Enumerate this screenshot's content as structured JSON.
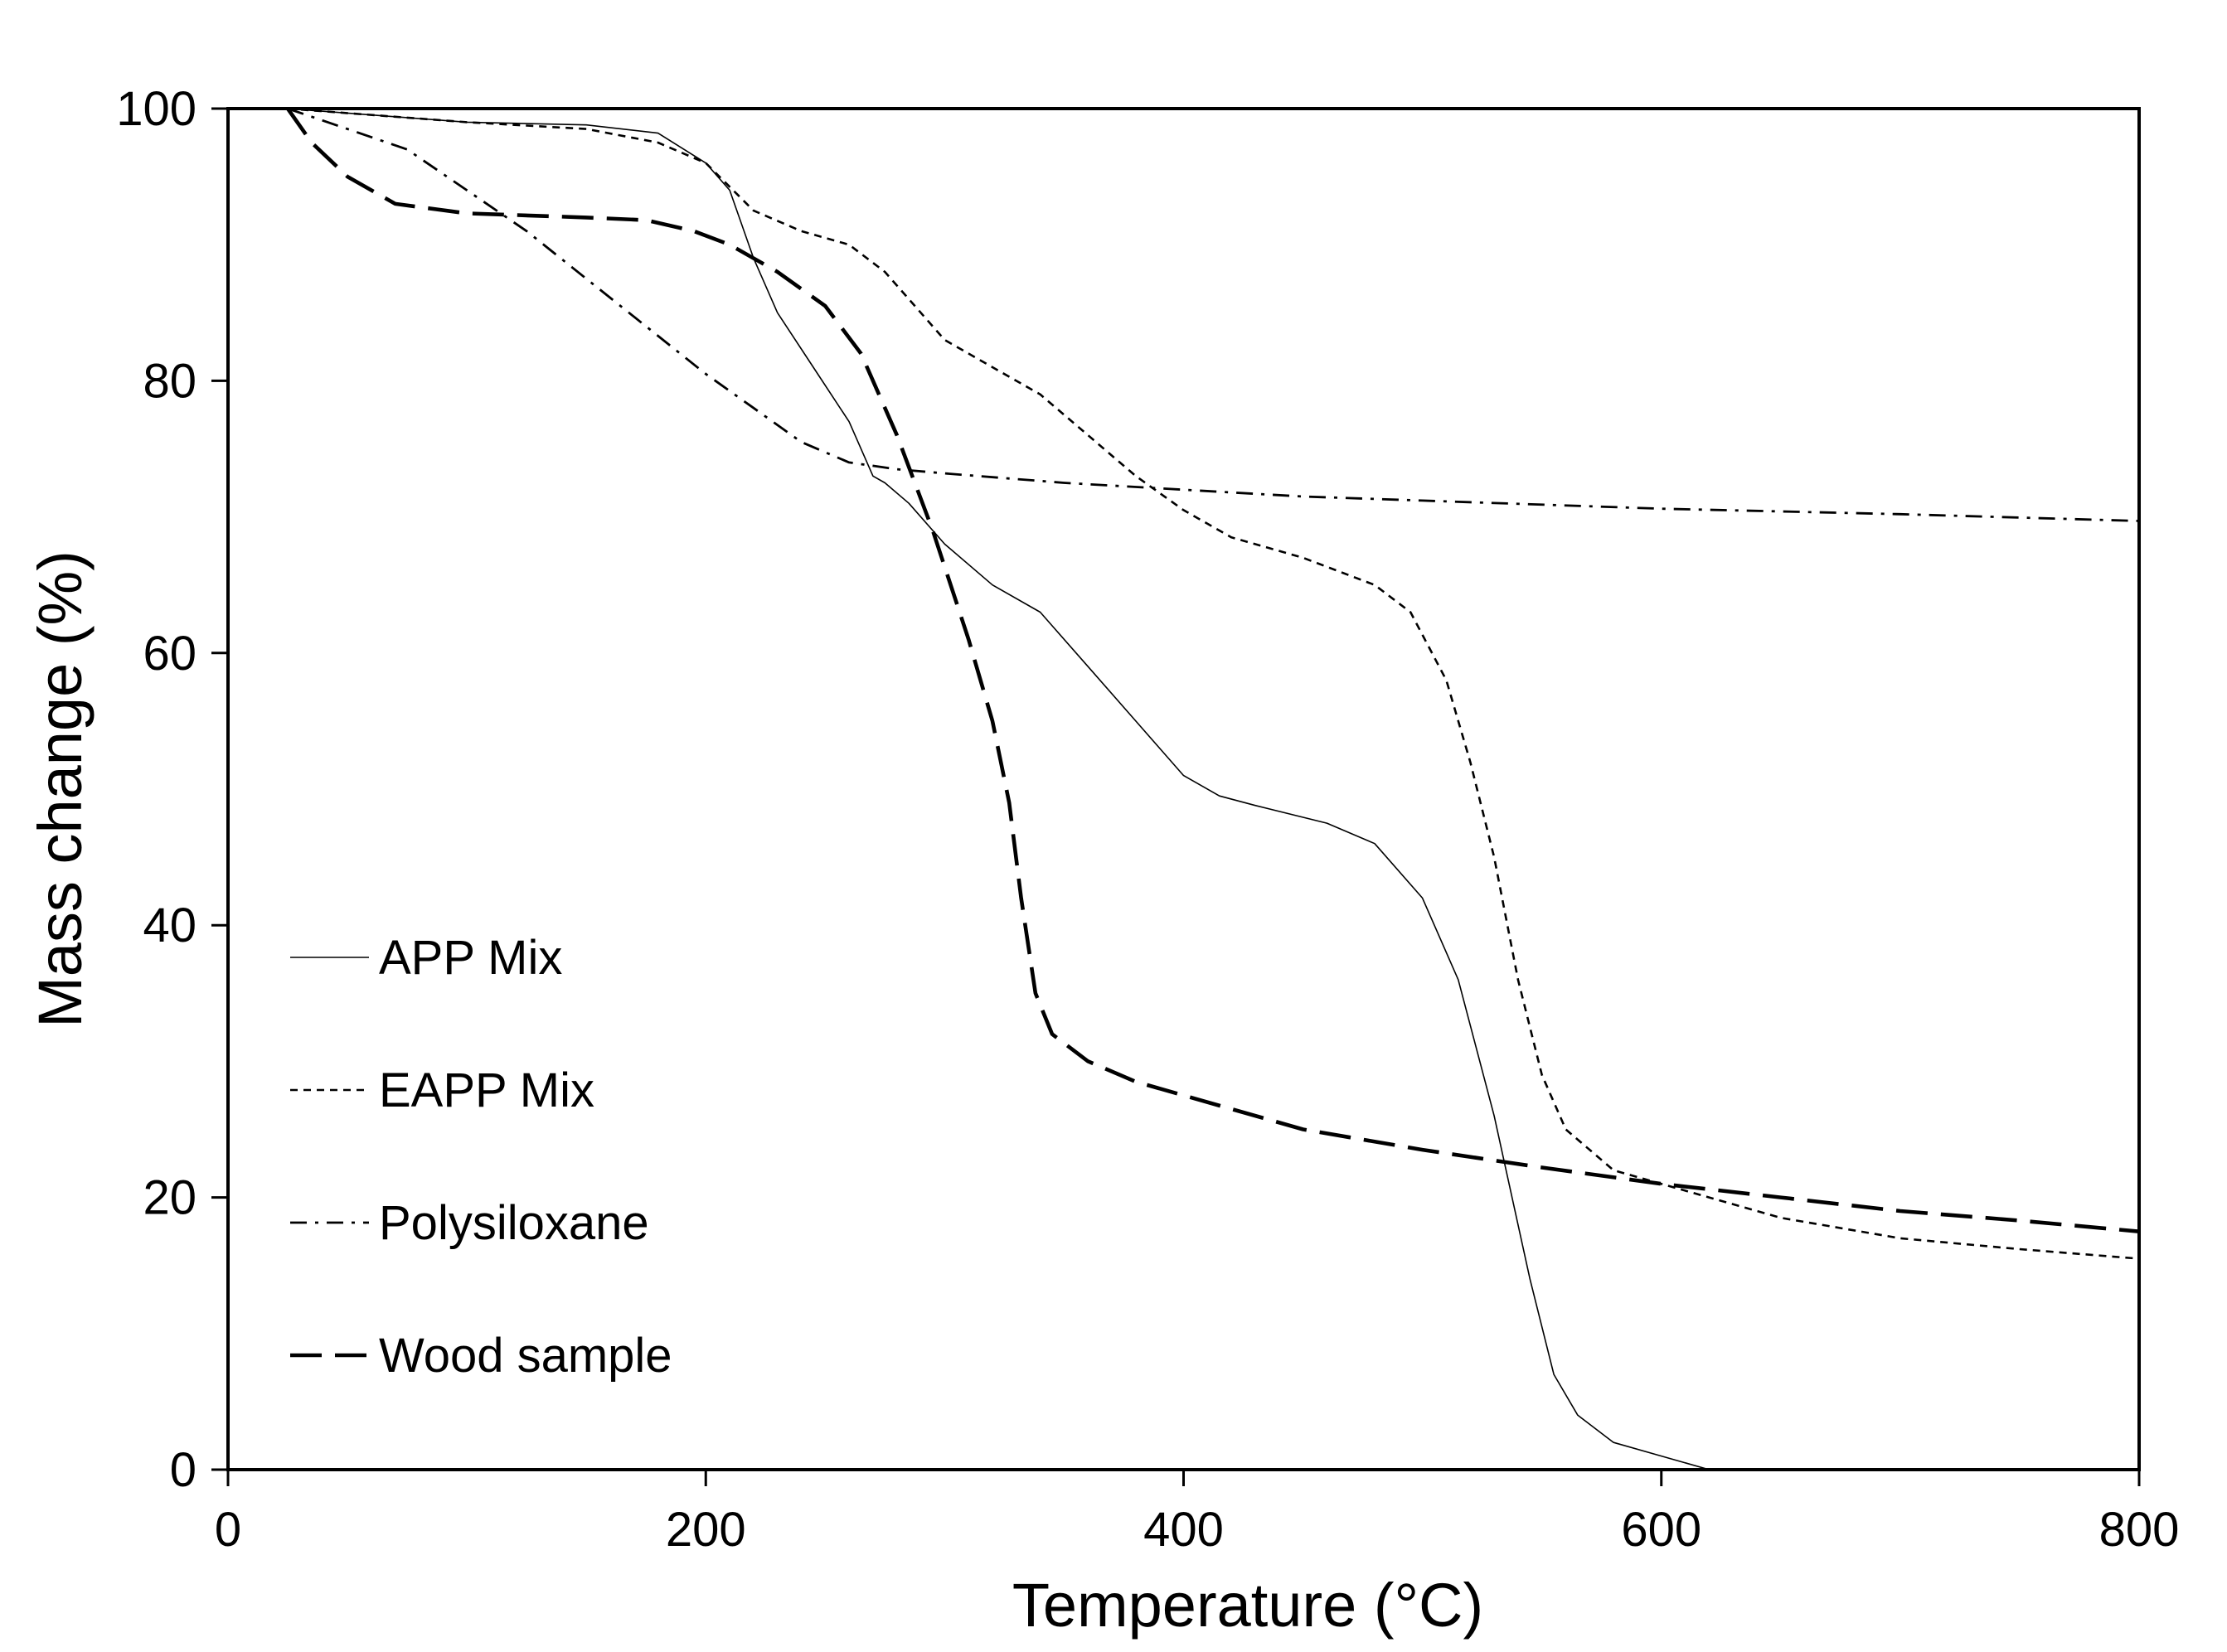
{
  "chart_data": {
    "type": "line",
    "title": "",
    "xlabel": "Temperature (°C)",
    "ylabel": "Mass change (%)",
    "xlim": [
      0,
      800
    ],
    "ylim": [
      0,
      100
    ],
    "xticks": [
      0,
      200,
      400,
      600,
      800
    ],
    "yticks": [
      0,
      20,
      40,
      60,
      80,
      100
    ],
    "grid": false,
    "legend_position": "left-lower-middle",
    "series": [
      {
        "name": "APP Mix",
        "style": "solid",
        "points": [
          [
            25,
            100
          ],
          [
            100,
            99
          ],
          [
            150,
            98.8
          ],
          [
            180,
            98.2
          ],
          [
            200,
            96
          ],
          [
            210,
            94
          ],
          [
            220,
            89
          ],
          [
            230,
            85
          ],
          [
            245,
            81
          ],
          [
            260,
            77
          ],
          [
            270,
            73
          ],
          [
            275,
            72.5
          ],
          [
            285,
            71
          ],
          [
            300,
            68
          ],
          [
            320,
            65
          ],
          [
            340,
            63
          ],
          [
            360,
            59
          ],
          [
            380,
            55
          ],
          [
            400,
            51
          ],
          [
            415,
            49.5
          ],
          [
            430,
            48.8
          ],
          [
            460,
            47.5
          ],
          [
            480,
            46
          ],
          [
            500,
            42
          ],
          [
            515,
            36
          ],
          [
            530,
            26
          ],
          [
            545,
            14
          ],
          [
            555,
            7
          ],
          [
            565,
            4
          ],
          [
            580,
            2
          ],
          [
            600,
            1
          ],
          [
            620,
            0
          ]
        ]
      },
      {
        "name": "EAPP Mix",
        "style": "dotted",
        "points": [
          [
            25,
            100
          ],
          [
            100,
            99
          ],
          [
            150,
            98.5
          ],
          [
            180,
            97.5
          ],
          [
            200,
            96
          ],
          [
            220,
            92.5
          ],
          [
            240,
            91
          ],
          [
            260,
            90
          ],
          [
            275,
            88
          ],
          [
            290,
            85
          ],
          [
            300,
            83
          ],
          [
            320,
            81
          ],
          [
            340,
            79
          ],
          [
            360,
            76
          ],
          [
            380,
            73
          ],
          [
            400,
            70.5
          ],
          [
            420,
            68.5
          ],
          [
            450,
            67
          ],
          [
            480,
            65
          ],
          [
            495,
            63
          ],
          [
            510,
            58
          ],
          [
            520,
            52
          ],
          [
            530,
            45
          ],
          [
            540,
            36
          ],
          [
            550,
            29
          ],
          [
            560,
            25
          ],
          [
            580,
            22
          ],
          [
            600,
            21
          ],
          [
            620,
            20
          ],
          [
            650,
            18.5
          ],
          [
            700,
            17
          ],
          [
            750,
            16.2
          ],
          [
            800,
            15.5
          ]
        ]
      },
      {
        "name": "Polysiloxane",
        "style": "dash-dot",
        "points": [
          [
            25,
            100
          ],
          [
            50,
            98.5
          ],
          [
            75,
            97
          ],
          [
            100,
            94
          ],
          [
            125,
            91
          ],
          [
            150,
            87.5
          ],
          [
            175,
            84
          ],
          [
            200,
            80.5
          ],
          [
            220,
            78
          ],
          [
            240,
            75.5
          ],
          [
            260,
            74
          ],
          [
            280,
            73.5
          ],
          [
            300,
            73.2
          ],
          [
            350,
            72.5
          ],
          [
            400,
            72
          ],
          [
            450,
            71.5
          ],
          [
            500,
            71.2
          ],
          [
            600,
            70.6
          ],
          [
            700,
            70.2
          ],
          [
            800,
            69.7
          ]
        ]
      },
      {
        "name": "Wood sample",
        "style": "long-dash",
        "points": [
          [
            25,
            100
          ],
          [
            35,
            97.5
          ],
          [
            50,
            95
          ],
          [
            70,
            93
          ],
          [
            100,
            92.3
          ],
          [
            150,
            92
          ],
          [
            175,
            91.8
          ],
          [
            195,
            91
          ],
          [
            210,
            90
          ],
          [
            230,
            88
          ],
          [
            250,
            85.5
          ],
          [
            265,
            82
          ],
          [
            280,
            76
          ],
          [
            295,
            69
          ],
          [
            310,
            61
          ],
          [
            320,
            55
          ],
          [
            327,
            49
          ],
          [
            332,
            42
          ],
          [
            338,
            35
          ],
          [
            345,
            32
          ],
          [
            360,
            30
          ],
          [
            380,
            28.5
          ],
          [
            400,
            27.5
          ],
          [
            450,
            25
          ],
          [
            500,
            23.5
          ],
          [
            550,
            22.2
          ],
          [
            600,
            21
          ],
          [
            650,
            20
          ],
          [
            700,
            19
          ],
          [
            750,
            18.3
          ],
          [
            800,
            17.5
          ]
        ]
      }
    ]
  }
}
